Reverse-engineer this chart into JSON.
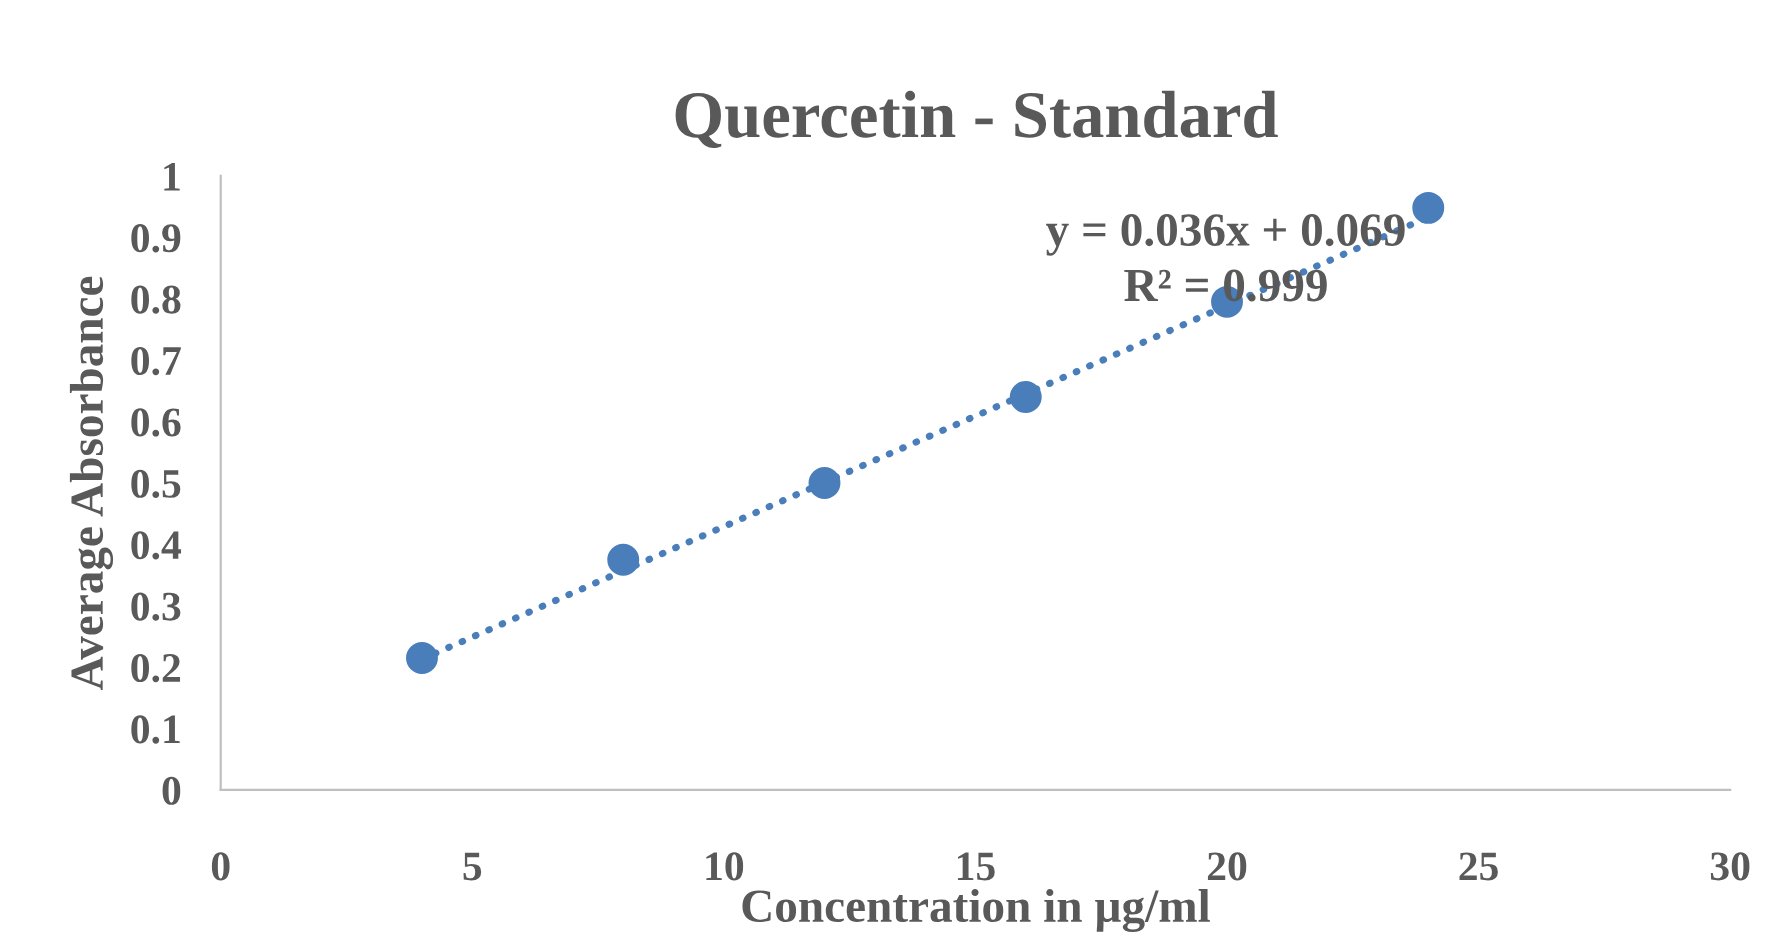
{
  "chart_data": {
    "type": "scatter",
    "title": "Quercetin - Standard",
    "xlabel": "Concentration in µg/ml",
    "ylabel": "Average Absorbance",
    "x": [
      4,
      8,
      12,
      16,
      20,
      24
    ],
    "series": [
      {
        "color": "#4a7ebb",
        "marker": "circle",
        "values": [
          0.215,
          0.375,
          0.5,
          0.64,
          0.795,
          0.948
        ]
      },
      {
        "type": "line",
        "color": "#4a7ebb",
        "line_style": "dotted",
        "marker": "none",
        "x": [
          4,
          24
        ],
        "values": [
          0.213,
          0.933
        ]
      }
    ],
    "annotations": [
      "y = 0.036x + 0.069",
      "R² = 0.999"
    ],
    "xlim": [
      0,
      30
    ],
    "xticks": [
      0,
      5,
      10,
      15,
      20,
      25,
      30
    ],
    "ylim": [
      0,
      1
    ],
    "yticks": [
      0,
      0.1,
      0.2,
      0.3,
      0.4,
      0.5,
      0.6,
      0.7,
      0.8,
      0.9,
      1
    ],
    "grid": false,
    "legend": false
  }
}
